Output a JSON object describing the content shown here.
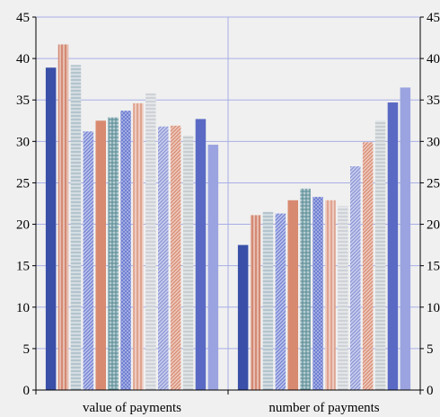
{
  "chart_data": {
    "type": "bar",
    "title": "",
    "xlabel": "",
    "ylabel": "",
    "ylim": [
      0,
      45
    ],
    "yticks": [
      0,
      5,
      10,
      15,
      20,
      25,
      30,
      35,
      40,
      45
    ],
    "ytick_labels_left": [
      "0",
      "5",
      "10",
      "15",
      "20",
      "25",
      "30",
      "35",
      "40",
      "45"
    ],
    "ytick_labels_right": [
      "0",
      "5",
      "10",
      "15",
      "20",
      "25",
      "30",
      "35",
      "40",
      "45"
    ],
    "grid": true,
    "legend": "none",
    "categories": [
      "value of payments",
      "number of payments"
    ],
    "series": [
      {
        "values": [
          38.9,
          17.5
        ],
        "color": "#3a4fa8",
        "pattern": "solid"
      },
      {
        "values": [
          41.7,
          21.1
        ],
        "color": "#c8694e",
        "pattern": "vlines"
      },
      {
        "values": [
          39.2,
          21.5
        ],
        "color": "#9fb3bf",
        "pattern": "hlines"
      },
      {
        "values": [
          31.2,
          21.3
        ],
        "color": "#6f7fd2",
        "pattern": "diag"
      },
      {
        "values": [
          32.5,
          22.9
        ],
        "color": "#d88a70",
        "pattern": "solid"
      },
      {
        "values": [
          32.9,
          24.3
        ],
        "color": "#5f8f99",
        "pattern": "grid"
      },
      {
        "values": [
          33.7,
          23.3
        ],
        "color": "#6f7fd2",
        "pattern": "cross"
      },
      {
        "values": [
          34.6,
          22.9
        ],
        "color": "#d88a70",
        "pattern": "vlines"
      },
      {
        "values": [
          35.8,
          22.2
        ],
        "color": "#c0c6cc",
        "pattern": "hlines"
      },
      {
        "values": [
          31.8,
          27.0
        ],
        "color": "#8a94d6",
        "pattern": "diag"
      },
      {
        "values": [
          31.9,
          29.9
        ],
        "color": "#d88a70",
        "pattern": "diag"
      },
      {
        "values": [
          30.7,
          32.5
        ],
        "color": "#b8c0c4",
        "pattern": "hlines"
      },
      {
        "values": [
          32.7,
          34.7
        ],
        "color": "#5a6ac4",
        "pattern": "solid"
      },
      {
        "values": [
          29.6,
          36.5
        ],
        "color": "#9ba4e0",
        "pattern": "solid"
      }
    ]
  }
}
